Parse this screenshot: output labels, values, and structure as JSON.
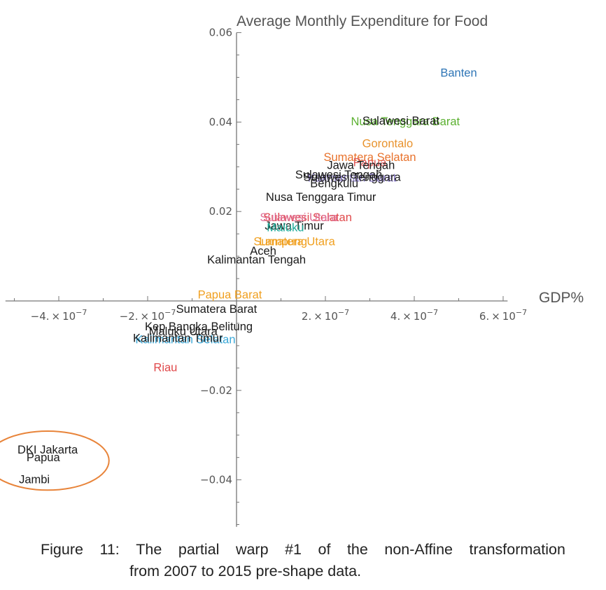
{
  "caption": {
    "line1_words": [
      "Figure",
      "11:",
      "The",
      "partial",
      "warp",
      "#1",
      "of",
      "the",
      "non-Affine",
      "transformation"
    ],
    "line2": "from 2007 to 2015 pre-shape data."
  },
  "chart_data": {
    "type": "scatter",
    "ylabel": "Average Monthly Expenditure for Food",
    "xlabel": "GDP%",
    "xlim": [
      -5.2e-07,
      6.1e-07
    ],
    "ylim": [
      -0.0505,
      0.06
    ],
    "x_ticks": [
      {
        "value": -4e-07,
        "mant": "-4.",
        "exp": "-7"
      },
      {
        "value": -2e-07,
        "mant": "-2.",
        "exp": "-7"
      },
      {
        "value": 2e-07,
        "mant": "2.",
        "exp": "-7"
      },
      {
        "value": 4e-07,
        "mant": "4.",
        "exp": "-7"
      },
      {
        "value": 6e-07,
        "mant": "6.",
        "exp": "-7"
      }
    ],
    "y_ticks": [
      {
        "value": 0.06,
        "label": "0.06"
      },
      {
        "value": 0.04,
        "label": "0.04"
      },
      {
        "value": 0.02,
        "label": "0.02"
      },
      {
        "value": -0.02,
        "label": "−0.02"
      },
      {
        "value": -0.04,
        "label": "−0.04"
      }
    ],
    "points": [
      {
        "label": "Banten",
        "x": 5e-07,
        "y": 0.0511,
        "color": "#2e75b6"
      },
      {
        "label": "Nusa Tenggara Barat",
        "x": 3.8e-07,
        "y": 0.0402,
        "color": "#5bb030"
      },
      {
        "label": "Sulawesi Barat",
        "x": 3.7e-07,
        "y": 0.0404,
        "color": "#1a1a1a"
      },
      {
        "label": "Gorontalo",
        "x": 3.4e-07,
        "y": 0.0353,
        "color": "#e8922c"
      },
      {
        "label": "Sumatera Selatan",
        "x": 3e-07,
        "y": 0.0322,
        "color": "#e8722c"
      },
      {
        "label": "Papua",
        "x": 3e-07,
        "y": 0.0311,
        "color": "#e05a5a"
      },
      {
        "label": "Jawa Tengah",
        "x": 2.8e-07,
        "y": 0.0304,
        "color": "#1a1a1a"
      },
      {
        "label": "Kalimantan Barat",
        "x": 2.6e-07,
        "y": 0.0276,
        "color": "#8878c8"
      },
      {
        "label": "Sulawesi Tenggara",
        "x": 2.6e-07,
        "y": 0.0278,
        "color": "#1a1a1a"
      },
      {
        "label": "Sulawesi Tengah",
        "x": 2.3e-07,
        "y": 0.0283,
        "color": "#1a1a1a"
      },
      {
        "label": "Bengkulu",
        "x": 2.2e-07,
        "y": 0.0264,
        "color": "#1a1a1a"
      },
      {
        "label": "Nusa Tenggara Timur",
        "x": 1.9e-07,
        "y": 0.0233,
        "color": "#1a1a1a"
      },
      {
        "label": "Sulawesi Selatan",
        "x": 1.6e-07,
        "y": 0.0188,
        "color": "#e0484a"
      },
      {
        "label": "Sulawesi Utara",
        "x": 1.4e-07,
        "y": 0.0188,
        "color": "#e07098"
      },
      {
        "label": "Jawa Timur",
        "x": 1.3e-07,
        "y": 0.0169,
        "color": "#1a1a1a"
      },
      {
        "label": "Maluku",
        "x": 1.1e-07,
        "y": 0.0165,
        "color": "#1aa896"
      },
      {
        "label": "Sumatera Utara",
        "x": 1.3e-07,
        "y": 0.0134,
        "color": "#f0a020"
      },
      {
        "label": "Lampung",
        "x": 1.05e-07,
        "y": 0.0134,
        "color": "#f0a020"
      },
      {
        "label": "Aceh",
        "x": 6e-08,
        "y": 0.0113,
        "color": "#1a1a1a"
      },
      {
        "label": "Kalimantan Tengah",
        "x": 4.5e-08,
        "y": 0.0093,
        "color": "#1a1a1a"
      },
      {
        "label": "Papua Barat",
        "x": -1.5e-08,
        "y": 0.0015,
        "color": "#f0a020"
      },
      {
        "label": "Sumatera Barat",
        "x": -4.5e-08,
        "y": -0.0017,
        "color": "#1a1a1a"
      },
      {
        "label": "Kep Bangka Belitung",
        "x": -8.5e-08,
        "y": -0.0056,
        "color": "#1a1a1a"
      },
      {
        "label": "Maluku Utara",
        "x": -1.2e-07,
        "y": -0.0067,
        "color": "#1a1a1a"
      },
      {
        "label": "Kalimantan Selatan",
        "x": -1.15e-07,
        "y": -0.0085,
        "color": "#3aa8d8"
      },
      {
        "label": "Kalimantan Timur",
        "x": -1.32e-07,
        "y": -0.0082,
        "color": "#1a1a1a"
      },
      {
        "label": "Riau",
        "x": -1.6e-07,
        "y": -0.0148,
        "color": "#e0484a"
      },
      {
        "label": "DKI Jakarta",
        "x": -4.25e-07,
        "y": -0.0332,
        "color": "#1a1a1a"
      },
      {
        "label": "Papua",
        "x": -4.35e-07,
        "y": -0.0349,
        "color": "#1a1a1a"
      },
      {
        "label": "Jambi",
        "x": -4.55e-07,
        "y": -0.0398,
        "color": "#1a1a1a"
      }
    ],
    "highlight": {
      "shape": "ellipse",
      "cx": -4.25e-07,
      "cy": -0.0357,
      "rx": 1.38e-07,
      "ry": 0.0066,
      "color": "#e8843a"
    }
  }
}
